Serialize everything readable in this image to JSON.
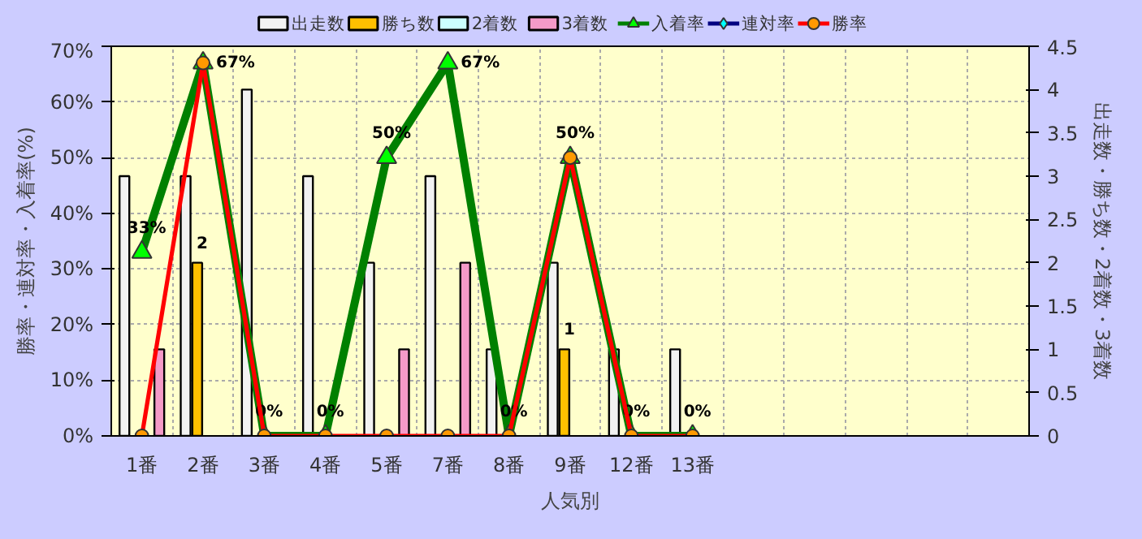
{
  "chart_data": {
    "type": "bar",
    "xlabel": "人気別",
    "ylabel": "勝率・連対率・入着率(%)",
    "y2label": "出走数・勝ち数・2着数・3着数",
    "categories": [
      "1番",
      "2番",
      "3番",
      "4番",
      "5番",
      "7番",
      "8番",
      "9番",
      "12番",
      "13番",
      null,
      null,
      null,
      null,
      null
    ],
    "ylim": [
      0,
      70
    ],
    "yticks": [
      {
        "value": 0,
        "label": "0%"
      },
      {
        "value": 10,
        "label": "10%"
      },
      {
        "value": 20,
        "label": "20%"
      },
      {
        "value": 30,
        "label": "30%"
      },
      {
        "value": 40,
        "label": "40%"
      },
      {
        "value": 50,
        "label": "50%"
      },
      {
        "value": 60,
        "label": "60%"
      },
      {
        "value": 70,
        "label": "70%"
      }
    ],
    "y2lim": [
      0,
      4.5
    ],
    "y2ticks": [
      0,
      0.5,
      1,
      1.5,
      2,
      2.5,
      3,
      3.5,
      4,
      4.5
    ],
    "grid": true,
    "legend": "top",
    "series": [
      {
        "name": "出走数",
        "axis": "y2",
        "color": "#f2f2f2",
        "values": [
          3,
          3,
          4,
          3,
          2,
          3,
          1,
          2,
          1,
          1,
          null,
          null,
          null,
          null,
          null
        ]
      },
      {
        "name": "勝ち数",
        "axis": "y2",
        "color": "#ffc000",
        "values": [
          null,
          2,
          null,
          null,
          null,
          null,
          null,
          1,
          null,
          null,
          null,
          null,
          null,
          null,
          null
        ],
        "value_labels": [
          null,
          "2",
          null,
          null,
          null,
          null,
          null,
          "1",
          null,
          null,
          null,
          null,
          null,
          null,
          null
        ]
      },
      {
        "name": "2着数",
        "axis": "y2",
        "color": "#ccffff",
        "values": [
          null,
          null,
          null,
          null,
          null,
          null,
          null,
          null,
          null,
          null,
          null,
          null,
          null,
          null,
          null
        ]
      },
      {
        "name": "3着数",
        "axis": "y2",
        "color": "#f49ac8",
        "values": [
          1,
          null,
          null,
          null,
          1,
          2,
          null,
          null,
          null,
          null,
          null,
          null,
          null,
          null,
          null
        ]
      },
      {
        "name": "入着率",
        "type": "line",
        "color": "#008000",
        "marker": "triangle",
        "values": [
          33,
          67,
          0,
          0,
          50,
          67,
          0,
          50,
          0,
          0,
          null,
          null,
          null,
          null,
          null
        ],
        "value_labels": [
          "33%",
          "67%",
          "0%",
          "0%",
          "50%",
          "67%",
          "0%",
          "50%",
          "0%",
          "0%",
          null,
          null,
          null,
          null,
          null
        ]
      },
      {
        "name": "連対率",
        "type": "line",
        "color": "#000080",
        "marker": "diamond",
        "values": [
          null,
          null,
          null,
          null,
          null,
          null,
          null,
          null,
          null,
          null,
          null,
          null,
          null,
          null,
          null
        ]
      },
      {
        "name": "勝率",
        "type": "line",
        "color": "#ff0000",
        "marker": "circle",
        "values": [
          0,
          67,
          0,
          0,
          0,
          0,
          0,
          50,
          0,
          0,
          null,
          null,
          null,
          null,
          null
        ]
      }
    ]
  }
}
